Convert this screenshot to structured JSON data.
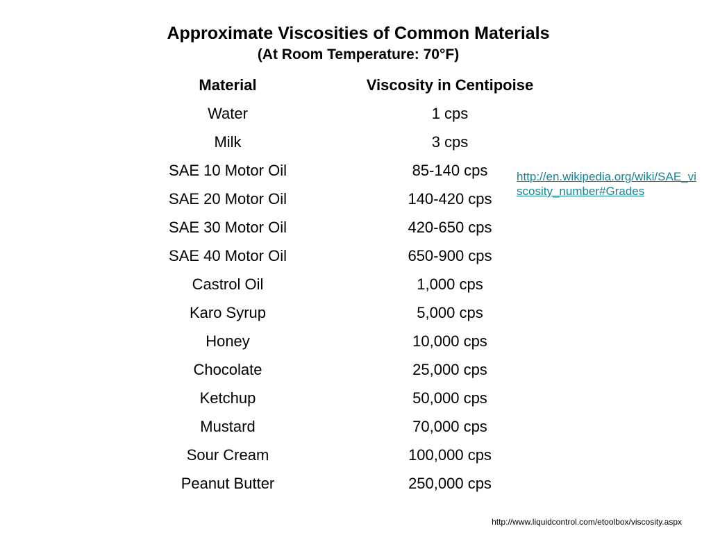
{
  "slide": {
    "title": "Approximate Viscosities of Common Materials",
    "subtitle": "(At Room Temperature: 70°F)"
  },
  "table": {
    "headers": [
      "Material",
      "Viscosity in Centipoise"
    ],
    "rows": [
      [
        "Water",
        "1 cps"
      ],
      [
        "Milk",
        "3 cps"
      ],
      [
        "SAE 10 Motor Oil",
        "85-140 cps"
      ],
      [
        "SAE 20 Motor Oil",
        "140-420 cps"
      ],
      [
        "SAE 30 Motor Oil",
        "420-650 cps"
      ],
      [
        "SAE 40 Motor Oil",
        "650-900 cps"
      ],
      [
        "Castrol Oil",
        "1,000 cps"
      ],
      [
        "Karo Syrup",
        "5,000 cps"
      ],
      [
        "Honey",
        "10,000 cps"
      ],
      [
        "Chocolate",
        "25,000 cps"
      ],
      [
        "Ketchup",
        "50,000 cps"
      ],
      [
        "Mustard",
        "70,000 cps"
      ],
      [
        "Sour Cream",
        "100,000 cps"
      ],
      [
        "Peanut Butter",
        "250,000 cps"
      ]
    ]
  },
  "link": {
    "text": "http://en.wikipedia.org/wiki/SAE_viscosity_number#Grades",
    "color": "#16858f"
  },
  "source": {
    "text": "http://www.liquidcontrol.com/etoolbox/viscosity.aspx"
  }
}
